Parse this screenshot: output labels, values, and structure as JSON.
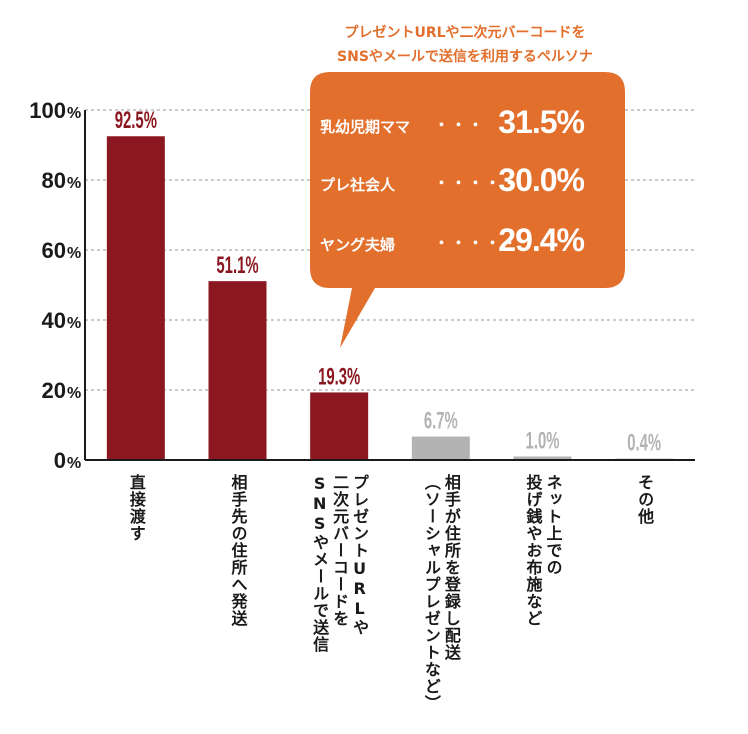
{
  "chart_data": {
    "type": "bar",
    "categories": [
      "直接渡す",
      "相手先の住所へ発送",
      "プレゼントURLや\n二次元バーコードを\nSNSやメールで送信",
      "相手が住所を登録し配送\n（ソーシャルプレゼントなど）",
      "ネット上での\n投げ銭やお布施など",
      "その他"
    ],
    "values": [
      92.5,
      51.1,
      19.3,
      6.7,
      1.0,
      0.4
    ],
    "value_labels": [
      "92.5%",
      "51.1%",
      "19.3%",
      "6.7%",
      "1.0%",
      "0.4%"
    ],
    "ylim": [
      0,
      100
    ],
    "yticks": [
      0,
      20,
      40,
      60,
      80,
      100
    ],
    "ytick_unit": "%",
    "grid": true,
    "colors": {
      "highlight": "#8b1820",
      "muted": "#b3b3b3",
      "accent": "#e26f2c"
    },
    "highlight_count": 3,
    "callout": {
      "title_line1": "プレゼントURLや二次元バーコードを",
      "title_line2": "SNSやメールで送信を利用するペルソナ",
      "rows": [
        {
          "name": "乳幼児期ママ",
          "dots": "・・・",
          "value": "31.5%"
        },
        {
          "name": "プレ社会人",
          "dots": "・・・・・",
          "value": "30.0%"
        },
        {
          "name": "ヤング夫婦",
          "dots": "・・・・・",
          "value": "29.4%"
        }
      ]
    }
  }
}
